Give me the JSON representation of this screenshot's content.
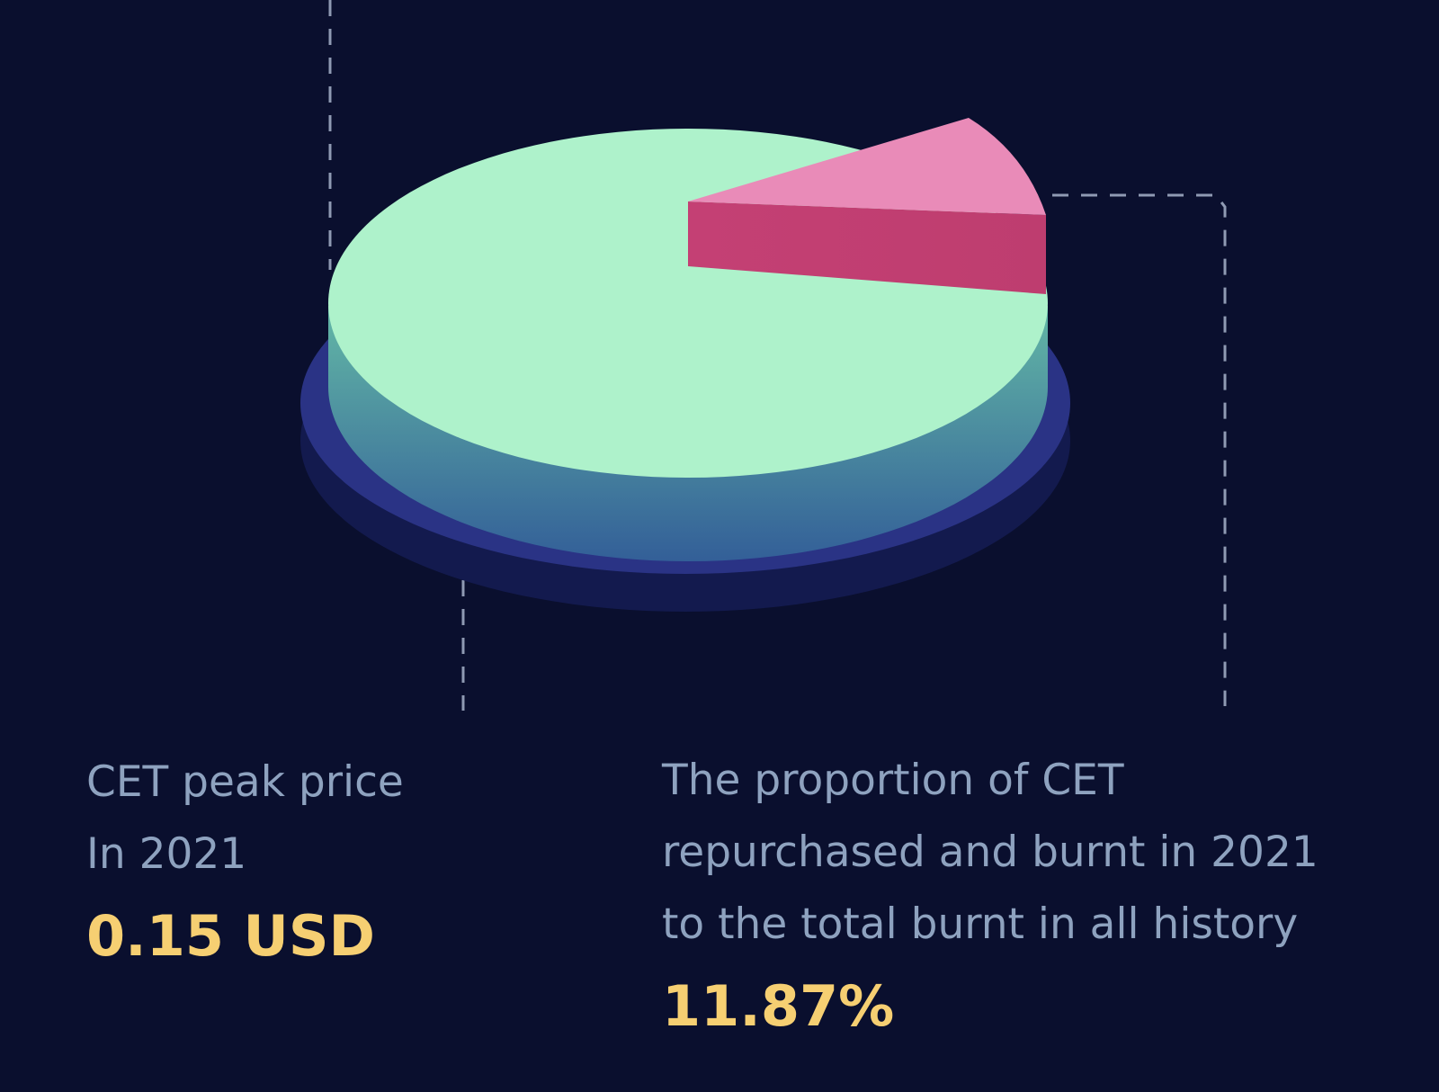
{
  "stats": [
    {
      "label_lines": [
        "CET peak price",
        "In 2021"
      ],
      "value": "0.15 USD"
    },
    {
      "label_lines": [
        "The proportion of CET",
        "repurchased and burnt in 2021",
        "to the total burnt in all history"
      ],
      "value": "11.87%"
    }
  ]
}
